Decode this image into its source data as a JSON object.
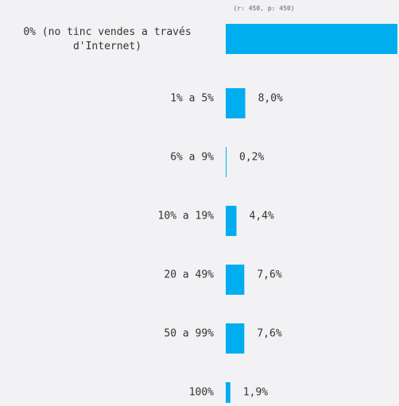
{
  "header": {
    "sample_note": "(r: 450, p: 450)"
  },
  "colors": {
    "background": "#f2f2f4",
    "bar": "#00aef0",
    "text": "#333333",
    "note": "#8a8a8a"
  },
  "chart_data": {
    "type": "bar",
    "orientation": "horizontal",
    "categories": [
      "0% (no tinc vendes a través d'Internet)",
      "1% a 5%",
      "6% a 9%",
      "10% a 19%",
      "20 a 49%",
      "50 a 99%",
      "100%"
    ],
    "values": [
      70.3,
      8.0,
      0.2,
      4.4,
      7.6,
      7.6,
      1.9
    ],
    "value_labels": [
      "",
      "8,0%",
      "0,2%",
      "4,4%",
      "7,6%",
      "7,6%",
      "1,9%"
    ],
    "xlim": [
      0,
      70.3
    ],
    "grid": false,
    "legend": "none"
  }
}
